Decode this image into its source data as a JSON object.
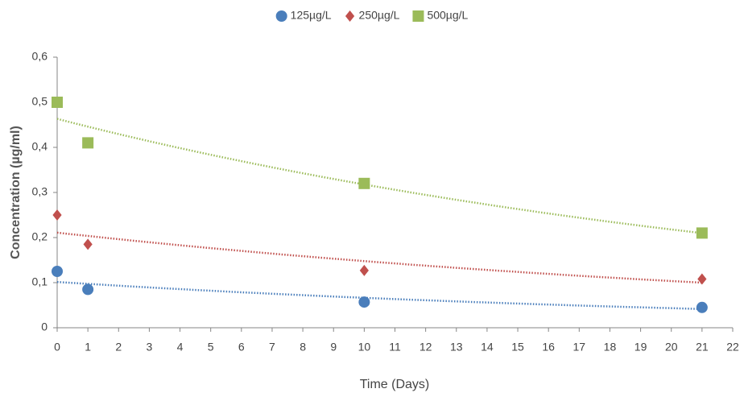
{
  "chart_data": {
    "type": "scatter",
    "x_label": "Time (Days)",
    "y_label": "Concentration (µg/ml)",
    "xlim": [
      0,
      22
    ],
    "xticks": [
      0,
      1,
      2,
      3,
      4,
      5,
      6,
      7,
      8,
      9,
      10,
      11,
      12,
      13,
      14,
      15,
      16,
      17,
      18,
      19,
      20,
      21,
      22
    ],
    "ylim": [
      0,
      0.6
    ],
    "yticks": [
      0,
      {
        "value": 0.1,
        "label": "0,1"
      },
      {
        "value": 0.2,
        "label": "0,2"
      },
      {
        "value": 0.3,
        "label": "0,3"
      },
      {
        "value": 0.4,
        "label": "0,4"
      },
      {
        "value": 0.5,
        "label": "0,5"
      },
      {
        "value": 0.6,
        "label": "0,6"
      }
    ],
    "grid": false,
    "legend": "top",
    "trendline": "exponential",
    "series": [
      {
        "name": "125µg/L",
        "color": "#4a7ebb",
        "marker": "circle",
        "x": [
          0,
          1,
          10,
          21
        ],
        "values": [
          0.125,
          0.085,
          0.057,
          0.045
        ]
      },
      {
        "name": "250µg/L",
        "color": "#c0504d",
        "marker": "diamond",
        "x": [
          0,
          1,
          10,
          21
        ],
        "values": [
          0.25,
          0.185,
          0.127,
          0.108
        ]
      },
      {
        "name": "500µg/L",
        "color": "#9bbb59",
        "marker": "square",
        "x": [
          0,
          1,
          10,
          21
        ],
        "values": [
          0.5,
          0.41,
          0.32,
          0.21
        ]
      }
    ]
  }
}
